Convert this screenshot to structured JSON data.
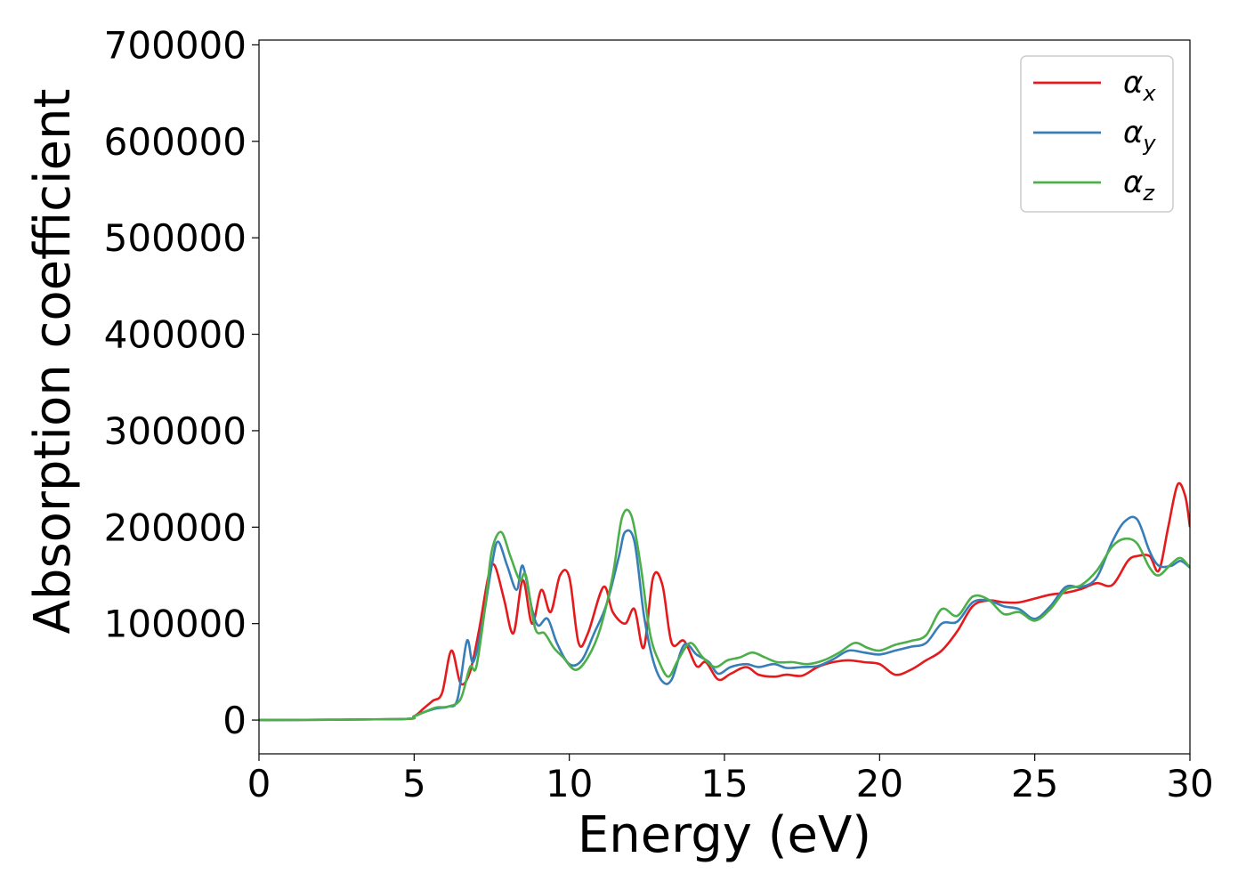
{
  "chart_data": {
    "type": "line",
    "xlabel": "Energy (eV)",
    "ylabel": "Absorption coefficient",
    "xlim": [
      0,
      30
    ],
    "ylim": [
      -35000,
      705000
    ],
    "xticks": [
      0,
      5,
      10,
      15,
      20,
      25,
      30
    ],
    "xtick_labels": [
      "0",
      "5",
      "10",
      "15",
      "20",
      "25",
      "30"
    ],
    "yticks": [
      0,
      100000,
      200000,
      300000,
      400000,
      500000,
      600000,
      700000
    ],
    "ytick_labels": [
      "0",
      "100000",
      "200000",
      "300000",
      "400000",
      "500000",
      "600000",
      "700000"
    ],
    "grid": false,
    "legend_position": "top-right",
    "series": [
      {
        "name": "α_x",
        "label_base": "α",
        "label_sub": "x",
        "color": "#e41a1c",
        "points": [
          [
            0,
            0
          ],
          [
            4.5,
            1000
          ],
          [
            5.0,
            4000
          ],
          [
            5.3,
            12000
          ],
          [
            5.6,
            20000
          ],
          [
            5.9,
            28000
          ],
          [
            6.2,
            72000
          ],
          [
            6.5,
            38000
          ],
          [
            6.8,
            50000
          ],
          [
            7.1,
            95000
          ],
          [
            7.4,
            150000
          ],
          [
            7.6,
            160000
          ],
          [
            7.9,
            125000
          ],
          [
            8.2,
            90000
          ],
          [
            8.5,
            145000
          ],
          [
            8.8,
            100000
          ],
          [
            9.1,
            135000
          ],
          [
            9.4,
            112000
          ],
          [
            9.7,
            150000
          ],
          [
            10.0,
            148000
          ],
          [
            10.3,
            80000
          ],
          [
            10.6,
            90000
          ],
          [
            11.1,
            138000
          ],
          [
            11.4,
            112000
          ],
          [
            11.8,
            100000
          ],
          [
            12.1,
            115000
          ],
          [
            12.4,
            75000
          ],
          [
            12.7,
            148000
          ],
          [
            13.0,
            140000
          ],
          [
            13.3,
            80000
          ],
          [
            13.7,
            82000
          ],
          [
            14.1,
            56000
          ],
          [
            14.4,
            60000
          ],
          [
            14.8,
            42000
          ],
          [
            15.2,
            48000
          ],
          [
            15.7,
            55000
          ],
          [
            16.1,
            47000
          ],
          [
            16.6,
            45000
          ],
          [
            17.0,
            47000
          ],
          [
            17.5,
            46000
          ],
          [
            18.0,
            55000
          ],
          [
            18.5,
            60000
          ],
          [
            19.0,
            62000
          ],
          [
            19.5,
            60000
          ],
          [
            20.0,
            58000
          ],
          [
            20.5,
            47000
          ],
          [
            21.0,
            52000
          ],
          [
            21.5,
            62000
          ],
          [
            22.0,
            72000
          ],
          [
            22.5,
            92000
          ],
          [
            23.0,
            118000
          ],
          [
            23.5,
            124000
          ],
          [
            24.0,
            122000
          ],
          [
            24.5,
            122000
          ],
          [
            25.0,
            126000
          ],
          [
            25.5,
            130000
          ],
          [
            26.0,
            132000
          ],
          [
            26.5,
            136000
          ],
          [
            27.0,
            142000
          ],
          [
            27.5,
            140000
          ],
          [
            28.0,
            165000
          ],
          [
            28.3,
            170000
          ],
          [
            28.7,
            170000
          ],
          [
            29.0,
            155000
          ],
          [
            29.3,
            200000
          ],
          [
            29.6,
            244000
          ],
          [
            29.85,
            232000
          ],
          [
            30.0,
            200000
          ]
        ]
      },
      {
        "name": "α_y",
        "label_base": "α",
        "label_sub": "y",
        "color": "#377eb8",
        "points": [
          [
            0,
            0
          ],
          [
            4.5,
            1000
          ],
          [
            5.0,
            4000
          ],
          [
            5.3,
            8000
          ],
          [
            5.7,
            12000
          ],
          [
            6.1,
            14000
          ],
          [
            6.4,
            22000
          ],
          [
            6.7,
            82000
          ],
          [
            6.9,
            60000
          ],
          [
            7.2,
            100000
          ],
          [
            7.5,
            160000
          ],
          [
            7.7,
            185000
          ],
          [
            8.0,
            160000
          ],
          [
            8.3,
            135000
          ],
          [
            8.5,
            160000
          ],
          [
            8.8,
            115000
          ],
          [
            9.0,
            98000
          ],
          [
            9.3,
            105000
          ],
          [
            9.6,
            80000
          ],
          [
            10.0,
            58000
          ],
          [
            10.4,
            62000
          ],
          [
            10.8,
            90000
          ],
          [
            11.2,
            120000
          ],
          [
            11.6,
            170000
          ],
          [
            11.8,
            195000
          ],
          [
            12.1,
            185000
          ],
          [
            12.4,
            110000
          ],
          [
            12.7,
            62000
          ],
          [
            13.0,
            40000
          ],
          [
            13.3,
            42000
          ],
          [
            13.7,
            78000
          ],
          [
            14.1,
            68000
          ],
          [
            14.5,
            60000
          ],
          [
            14.8,
            48000
          ],
          [
            15.2,
            55000
          ],
          [
            15.7,
            58000
          ],
          [
            16.1,
            55000
          ],
          [
            16.6,
            58000
          ],
          [
            17.0,
            54000
          ],
          [
            17.5,
            55000
          ],
          [
            18.0,
            56000
          ],
          [
            18.5,
            63000
          ],
          [
            19.0,
            72000
          ],
          [
            19.5,
            70000
          ],
          [
            20.0,
            68000
          ],
          [
            20.5,
            72000
          ],
          [
            21.0,
            76000
          ],
          [
            21.5,
            80000
          ],
          [
            22.0,
            100000
          ],
          [
            22.5,
            102000
          ],
          [
            23.0,
            122000
          ],
          [
            23.5,
            124000
          ],
          [
            24.0,
            118000
          ],
          [
            24.5,
            115000
          ],
          [
            25.0,
            105000
          ],
          [
            25.5,
            118000
          ],
          [
            26.0,
            138000
          ],
          [
            26.5,
            138000
          ],
          [
            27.0,
            148000
          ],
          [
            27.5,
            185000
          ],
          [
            27.9,
            206000
          ],
          [
            28.3,
            208000
          ],
          [
            28.7,
            175000
          ],
          [
            29.0,
            160000
          ],
          [
            29.4,
            160000
          ],
          [
            29.7,
            165000
          ],
          [
            30.0,
            158000
          ]
        ]
      },
      {
        "name": "α_z",
        "label_base": "α",
        "label_sub": "z",
        "color": "#4daf4a",
        "points": [
          [
            0,
            0
          ],
          [
            4.5,
            1000
          ],
          [
            5.0,
            4000
          ],
          [
            5.3,
            8000
          ],
          [
            5.7,
            13000
          ],
          [
            6.1,
            14000
          ],
          [
            6.5,
            22000
          ],
          [
            6.8,
            55000
          ],
          [
            7.0,
            55000
          ],
          [
            7.3,
            120000
          ],
          [
            7.5,
            175000
          ],
          [
            7.8,
            195000
          ],
          [
            8.1,
            170000
          ],
          [
            8.4,
            145000
          ],
          [
            8.6,
            150000
          ],
          [
            8.9,
            95000
          ],
          [
            9.2,
            90000
          ],
          [
            9.5,
            75000
          ],
          [
            9.8,
            65000
          ],
          [
            10.2,
            52000
          ],
          [
            10.6,
            65000
          ],
          [
            11.0,
            95000
          ],
          [
            11.4,
            150000
          ],
          [
            11.7,
            210000
          ],
          [
            12.0,
            212000
          ],
          [
            12.3,
            160000
          ],
          [
            12.6,
            90000
          ],
          [
            12.9,
            60000
          ],
          [
            13.2,
            45000
          ],
          [
            13.5,
            62000
          ],
          [
            13.9,
            80000
          ],
          [
            14.3,
            65000
          ],
          [
            14.7,
            55000
          ],
          [
            15.1,
            62000
          ],
          [
            15.5,
            65000
          ],
          [
            15.9,
            70000
          ],
          [
            16.3,
            65000
          ],
          [
            16.7,
            60000
          ],
          [
            17.2,
            60000
          ],
          [
            17.7,
            58000
          ],
          [
            18.2,
            62000
          ],
          [
            18.7,
            70000
          ],
          [
            19.2,
            80000
          ],
          [
            19.6,
            75000
          ],
          [
            20.0,
            72000
          ],
          [
            20.5,
            78000
          ],
          [
            21.0,
            82000
          ],
          [
            21.5,
            88000
          ],
          [
            22.0,
            115000
          ],
          [
            22.5,
            108000
          ],
          [
            23.0,
            128000
          ],
          [
            23.5,
            125000
          ],
          [
            24.0,
            110000
          ],
          [
            24.5,
            112000
          ],
          [
            25.0,
            103000
          ],
          [
            25.5,
            115000
          ],
          [
            26.0,
            135000
          ],
          [
            26.5,
            140000
          ],
          [
            27.0,
            155000
          ],
          [
            27.5,
            180000
          ],
          [
            27.9,
            188000
          ],
          [
            28.3,
            183000
          ],
          [
            28.7,
            158000
          ],
          [
            29.0,
            150000
          ],
          [
            29.4,
            162000
          ],
          [
            29.7,
            168000
          ],
          [
            30.0,
            158000
          ]
        ]
      }
    ]
  }
}
